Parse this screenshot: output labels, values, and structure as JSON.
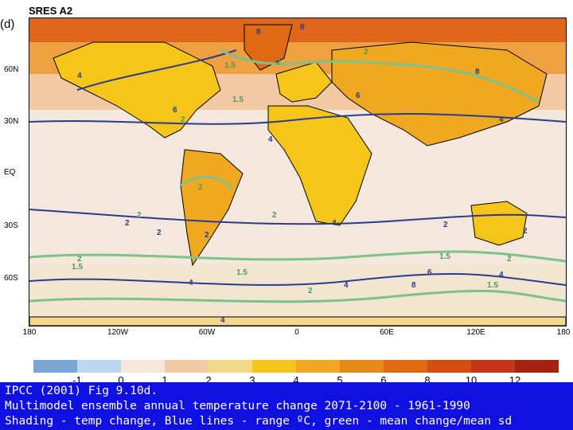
{
  "panel_label": "(d)",
  "scenario_title": "SRES A2",
  "lat_labels": [
    "60N",
    "30N",
    "EQ",
    "30S",
    "60S"
  ],
  "lon_labels": [
    "180",
    "120W",
    "60W",
    "0",
    "60E",
    "120E",
    "180"
  ],
  "colorbar": {
    "colors": [
      "#7aa6d6",
      "#bcd6ee",
      "#f4e7db",
      "#f3c9a4",
      "#f2d88a",
      "#f6c51a",
      "#efa820",
      "#e58a1a",
      "#e06a14",
      "#d54d12",
      "#c53518",
      "#a62210"
    ],
    "tick_labels": [
      "-1",
      "0",
      "1",
      "2",
      "3",
      "4",
      "5",
      "6",
      "8",
      "10",
      "12"
    ]
  },
  "contour_labels_blue": [
    "8",
    "8",
    "6",
    "4",
    "4",
    "6",
    "4",
    "4",
    "2",
    "2",
    "2",
    "2",
    "4",
    "4",
    "4",
    "6",
    "8",
    "4",
    "2",
    "8"
  ],
  "contour_labels_green": [
    "2",
    "1.5",
    "1.5",
    "2",
    "2",
    "2",
    "2",
    "2",
    "1.5",
    "1.5",
    "2",
    "2",
    "2",
    "1.5",
    "1.5"
  ],
  "caption": {
    "line1": "IPCC (2001) Fig 9.10d.",
    "line2": "Multimodel ensemble annual temperature change 2071-2100 - 1961-1990",
    "line3": "Shading - temp change, Blue lines - range ºC, green - mean change/mean sd"
  }
}
